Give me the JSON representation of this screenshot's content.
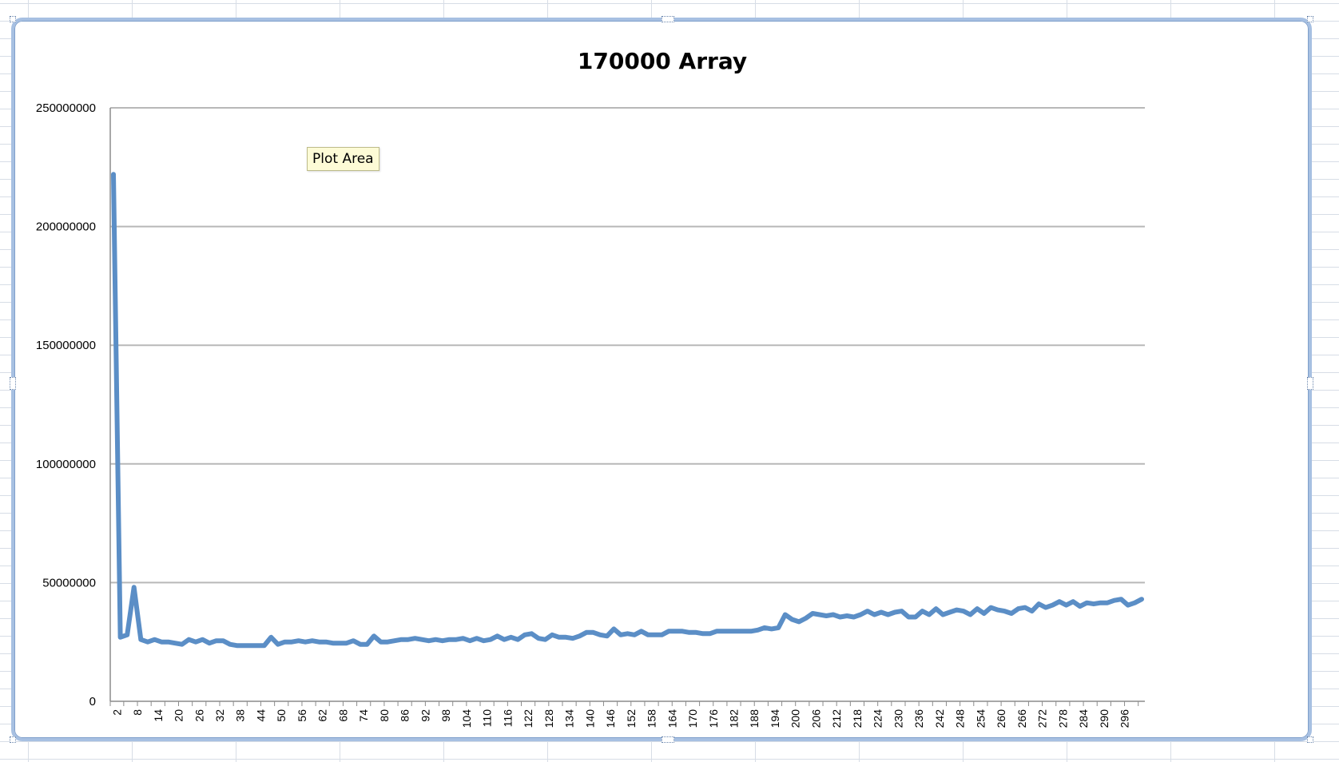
{
  "tooltip": {
    "text": "Plot Area"
  },
  "chart_data": {
    "type": "line",
    "title": "170000 Array",
    "xlabel": "",
    "ylabel": "",
    "ylim": [
      0,
      250000000
    ],
    "yticks": [
      0,
      50000000,
      100000000,
      150000000,
      200000000,
      250000000
    ],
    "grid": true,
    "legend": "none",
    "line_color": "#5b8ec6",
    "x_tick_labels": [
      2,
      8,
      14,
      20,
      26,
      32,
      38,
      44,
      50,
      56,
      62,
      68,
      74,
      80,
      86,
      92,
      98,
      104,
      110,
      116,
      122,
      128,
      134,
      140,
      146,
      152,
      158,
      164,
      170,
      176,
      182,
      188,
      194,
      200,
      206,
      212,
      218,
      224,
      230,
      236,
      242,
      248,
      254,
      260,
      266,
      272,
      278,
      284,
      290,
      296
    ],
    "series": [
      {
        "x_start": 1,
        "x_step": 2,
        "values": [
          222000000,
          27000000,
          28000000,
          48000000,
          26000000,
          25000000,
          26000000,
          25000000,
          25000000,
          24500000,
          24000000,
          26000000,
          25000000,
          26000000,
          24500000,
          25500000,
          25500000,
          24000000,
          23500000,
          23500000,
          23500000,
          23500000,
          23500000,
          27000000,
          24000000,
          25000000,
          25000000,
          25500000,
          25000000,
          25500000,
          25000000,
          25000000,
          24500000,
          24500000,
          24500000,
          25500000,
          24000000,
          24000000,
          27500000,
          25000000,
          25000000,
          25500000,
          26000000,
          26000000,
          26500000,
          26000000,
          25500000,
          26000000,
          25500000,
          26000000,
          26000000,
          26500000,
          25500000,
          26500000,
          25500000,
          26000000,
          27500000,
          26000000,
          27000000,
          26000000,
          28000000,
          28500000,
          26500000,
          26000000,
          28000000,
          27000000,
          27000000,
          26500000,
          27500000,
          29000000,
          29000000,
          28000000,
          27500000,
          30500000,
          28000000,
          28500000,
          28000000,
          29500000,
          28000000,
          28000000,
          28000000,
          29500000,
          29500000,
          29500000,
          29000000,
          29000000,
          28500000,
          28500000,
          29500000,
          29500000,
          29500000,
          29500000,
          29500000,
          29500000,
          30000000,
          31000000,
          30500000,
          31000000,
          36500000,
          34500000,
          33500000,
          35000000,
          37000000,
          36500000,
          36000000,
          36500000,
          35500000,
          36000000,
          35500000,
          36500000,
          38000000,
          36500000,
          37500000,
          36500000,
          37500000,
          38000000,
          35500000,
          35500000,
          38000000,
          36500000,
          39000000,
          36500000,
          37500000,
          38500000,
          38000000,
          36500000,
          39000000,
          37000000,
          39500000,
          38500000,
          38000000,
          37000000,
          39000000,
          39500000,
          38000000,
          41000000,
          39500000,
          40500000,
          42000000,
          40500000,
          42000000,
          40000000,
          41500000,
          41000000,
          41500000,
          41500000,
          42500000,
          43000000,
          40500000,
          41500000,
          43000000
        ]
      }
    ]
  }
}
